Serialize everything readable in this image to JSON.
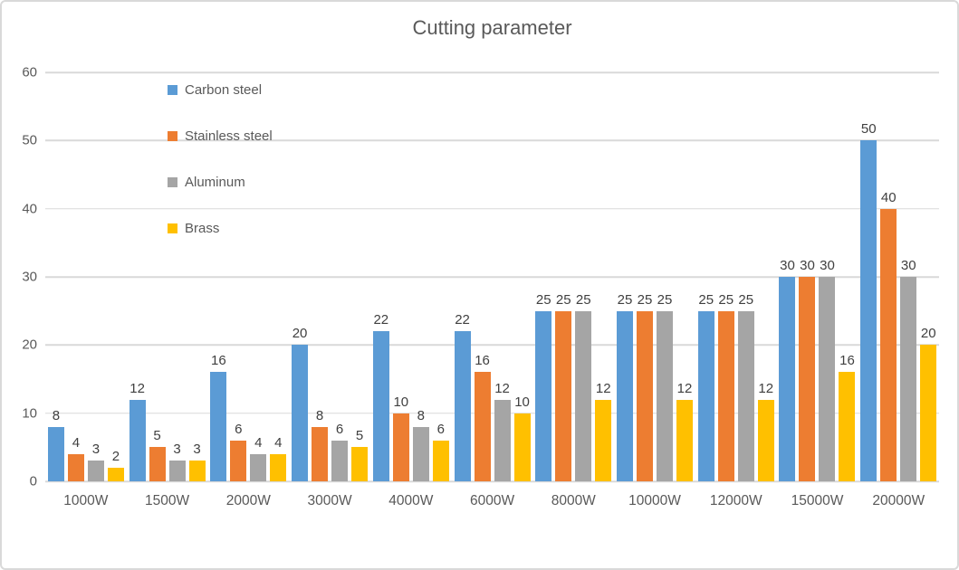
{
  "chart_data": {
    "type": "bar",
    "title": "Cutting parameter",
    "categories": [
      "1000W",
      "1500W",
      "2000W",
      "3000W",
      "4000W",
      "6000W",
      "8000W",
      "10000W",
      "12000W",
      "15000W",
      "20000W"
    ],
    "series": [
      {
        "name": "Carbon steel",
        "color": "#5B9BD5",
        "values": [
          8,
          12,
          16,
          20,
          22,
          22,
          25,
          25,
          25,
          30,
          50
        ]
      },
      {
        "name": "Stainless steel",
        "color": "#ED7D31",
        "values": [
          4,
          5,
          6,
          8,
          10,
          16,
          25,
          25,
          25,
          30,
          40
        ]
      },
      {
        "name": "Aluminum",
        "color": "#A5A5A5",
        "values": [
          3,
          3,
          4,
          6,
          8,
          12,
          25,
          25,
          25,
          30,
          30
        ]
      },
      {
        "name": "Brass",
        "color": "#FFC000",
        "values": [
          2,
          3,
          4,
          5,
          6,
          10,
          12,
          12,
          12,
          16,
          20
        ]
      }
    ],
    "xlabel": "",
    "ylabel": "",
    "ylim": [
      0,
      60
    ],
    "ytick_step": 10,
    "yticks": [
      0,
      10,
      20,
      30,
      40,
      50,
      60
    ],
    "grid": true,
    "data_labels": true,
    "legend_position": "inside-top-left-vertical"
  },
  "style_colors": {
    "title_text": "#595959",
    "axis_text": "#595959",
    "data_label_text": "#404040",
    "gridline": "#D9D9D9",
    "frame_border": "#D9D9D9",
    "background": "#FFFFFF"
  }
}
